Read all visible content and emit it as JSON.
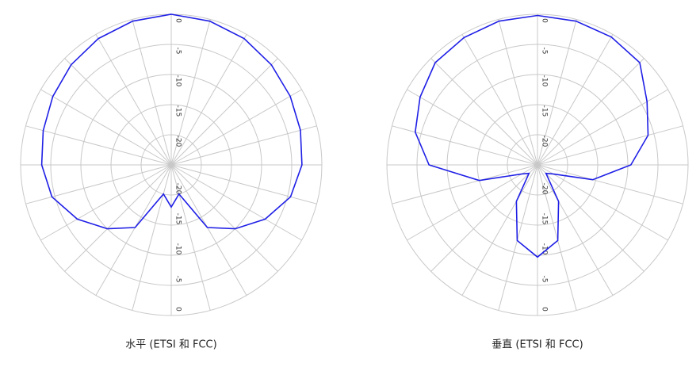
{
  "chart_data": [
    {
      "type": "polar",
      "title": "水平 (ETSI 和 FCC)",
      "theta": [
        0,
        15,
        30,
        45,
        60,
        75,
        90,
        105,
        120,
        135,
        150,
        165,
        180,
        195,
        210,
        225,
        240,
        255,
        270,
        285,
        300,
        315,
        330,
        345
      ],
      "series": [
        {
          "color": "#1f1fe6",
          "values": [
            0,
            -0.3,
            -0.8,
            -1.5,
            -2.2,
            -2.8,
            -3.3,
            -4.5,
            -7,
            -10,
            -13,
            -20,
            -18,
            -20,
            -13,
            -10,
            -7,
            -4.5,
            -3.5,
            -3,
            -2.3,
            -1.5,
            -0.8,
            -0.3
          ]
        }
      ],
      "rlim": [
        -25,
        0
      ],
      "rticks": [
        0,
        -5,
        -10,
        -15,
        -20
      ]
    },
    {
      "type": "polar",
      "title": "垂直 (ETSI 和 FCC)",
      "theta": [
        0,
        15,
        30,
        45,
        60,
        75,
        90,
        105,
        120,
        135,
        150,
        165,
        180,
        195,
        210,
        225,
        240,
        255,
        270,
        285,
        300,
        315,
        330,
        345
      ],
      "series": [
        {
          "color": "#1f1fe6",
          "values": [
            -0.2,
            -0.3,
            -0.5,
            -1,
            -4,
            -6,
            -9.5,
            -15.5,
            -22,
            -23,
            -18,
            -12,
            -9.7,
            -12,
            -18,
            -23,
            -22,
            -15,
            -7,
            -4,
            -2.5,
            -1,
            -0.6,
            -0.3
          ]
        }
      ],
      "rlim": [
        -25,
        0
      ],
      "rticks": [
        0,
        -5,
        -10,
        -15,
        -20
      ]
    }
  ]
}
